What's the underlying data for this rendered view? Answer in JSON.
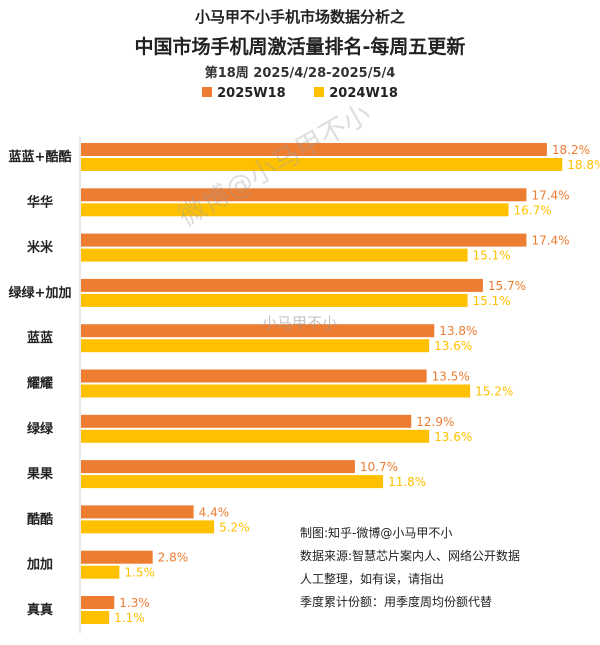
{
  "header": {
    "supertitle": "小马甲不小手机市场数据分析之",
    "title": "中国市场手机周激活量排名-每周五更新",
    "subtitle": "第18周 2025/4/28-2025/5/4"
  },
  "watermarks": [
    "微博@小马甲不小",
    "小马甲不小"
  ],
  "notes": [
    "制图:知乎-微博@小马甲不小",
    "数据来源:智慧芯片案内人、网络公开数据",
    "人工整理，如有误，请指出",
    "季度累计份额：用季度周均份额代替"
  ],
  "chart_data": {
    "type": "bar",
    "orientation": "horizontal",
    "categories": [
      "蓝蓝+酷酷",
      "华华",
      "米米",
      "绿绿+加加",
      "蓝蓝",
      "耀耀",
      "绿绿",
      "果果",
      "酷酷",
      "加加",
      "真真"
    ],
    "series": [
      {
        "name": "2025W18",
        "color": "#ED7D31",
        "values": [
          18.2,
          17.4,
          17.4,
          15.7,
          13.8,
          13.5,
          12.9,
          10.7,
          4.4,
          2.8,
          1.3
        ],
        "labels": [
          "18.2%",
          "17.4%",
          "17.4%",
          "15.7%",
          "13.8%",
          "13.5%",
          "12.9%",
          "10.7%",
          "4.4%",
          "2.8%",
          "1.3%"
        ]
      },
      {
        "name": "2024W18",
        "color": "#FFC000",
        "values": [
          18.8,
          16.7,
          15.1,
          15.1,
          13.6,
          15.2,
          13.6,
          11.8,
          5.2,
          1.5,
          1.1
        ],
        "labels": [
          "18.8%",
          "16.7%",
          "15.1%",
          "15.1%",
          "13.6%",
          "15.2%",
          "13.6%",
          "11.8%",
          "5.2%",
          "1.5%",
          "1.1%"
        ]
      }
    ],
    "unit": "%",
    "xlim": [
      0,
      19
    ],
    "legend_position": "top",
    "grid": false
  }
}
